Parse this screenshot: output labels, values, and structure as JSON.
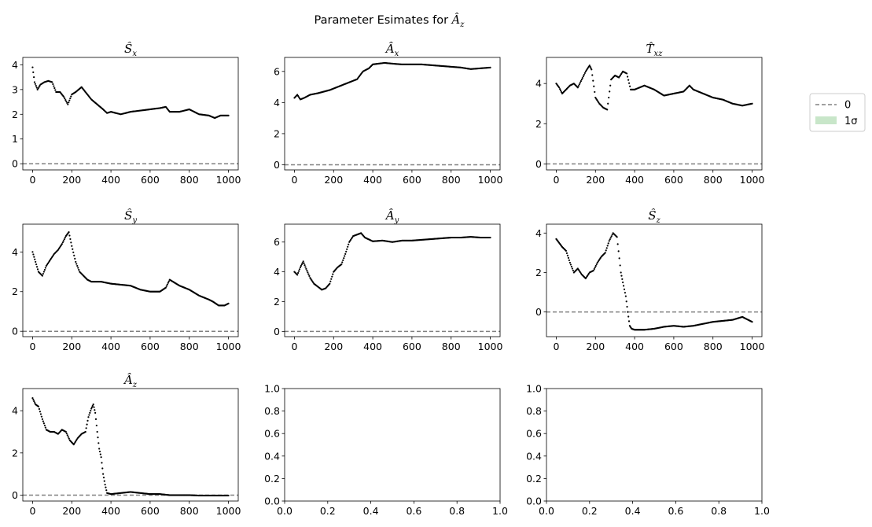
{
  "figure": {
    "suptitle": "Parameter Esimates for Â_z",
    "suptitle_base": "Parameter Esimates for ",
    "suptitle_math": "Â",
    "suptitle_sub": "z"
  },
  "legend": {
    "placement": "right",
    "items": [
      {
        "label": "0",
        "style": "dashed-line",
        "color": "#808080"
      },
      {
        "label": "1σ",
        "style": "patch",
        "color": "#c8e6c9"
      }
    ]
  },
  "chart_data": [
    {
      "type": "scatter",
      "title_symbol": "Ŝ",
      "title_sub": "x",
      "xlim": [
        -50,
        1050
      ],
      "ylim": [
        -0.25,
        4.3
      ],
      "xticks": [
        0,
        200,
        400,
        600,
        800,
        1000
      ],
      "yticks": [
        0,
        1,
        2,
        3,
        4
      ],
      "zero_line": 0,
      "x": [
        0,
        10,
        25,
        40,
        60,
        80,
        100,
        120,
        140,
        160,
        180,
        200,
        220,
        250,
        280,
        300,
        330,
        360,
        380,
        400,
        450,
        500,
        550,
        600,
        650,
        680,
        700,
        750,
        800,
        850,
        900,
        930,
        960,
        1000
      ],
      "y": [
        3.9,
        3.3,
        3.0,
        3.2,
        3.3,
        3.35,
        3.3,
        2.9,
        2.9,
        2.7,
        2.4,
        2.8,
        2.9,
        3.1,
        2.8,
        2.6,
        2.4,
        2.2,
        2.05,
        2.1,
        2.0,
        2.1,
        2.15,
        2.2,
        2.25,
        2.3,
        2.1,
        2.1,
        2.2,
        2.0,
        1.95,
        1.85,
        1.95,
        1.95
      ]
    },
    {
      "type": "scatter",
      "title_symbol": "Â",
      "title_sub": "x",
      "xlim": [
        -50,
        1050
      ],
      "ylim": [
        -0.33,
        6.9
      ],
      "xticks": [
        0,
        200,
        400,
        600,
        800,
        1000
      ],
      "yticks": [
        0,
        2,
        4,
        6
      ],
      "zero_line": 0,
      "x": [
        0,
        15,
        30,
        50,
        80,
        120,
        150,
        180,
        200,
        240,
        280,
        320,
        350,
        380,
        400,
        430,
        460,
        500,
        550,
        600,
        650,
        700,
        750,
        800,
        850,
        900,
        950,
        1000
      ],
      "y": [
        4.3,
        4.5,
        4.2,
        4.3,
        4.5,
        4.6,
        4.7,
        4.8,
        4.9,
        5.1,
        5.3,
        5.5,
        6.0,
        6.2,
        6.45,
        6.5,
        6.55,
        6.5,
        6.45,
        6.45,
        6.45,
        6.4,
        6.35,
        6.3,
        6.25,
        6.15,
        6.2,
        6.25
      ]
    },
    {
      "type": "scatter",
      "title_symbol": "T̂",
      "title_sub": "xz",
      "xlim": [
        -50,
        1050
      ],
      "ylim": [
        -0.3,
        5.3
      ],
      "xticks": [
        0,
        200,
        400,
        600,
        800,
        1000
      ],
      "yticks": [
        0,
        2,
        4
      ],
      "zero_line": 0,
      "x": [
        0,
        15,
        30,
        50,
        70,
        90,
        110,
        130,
        150,
        170,
        180,
        200,
        220,
        240,
        260,
        280,
        300,
        320,
        340,
        360,
        380,
        400,
        450,
        500,
        550,
        600,
        650,
        680,
        700,
        750,
        800,
        850,
        900,
        950,
        1000
      ],
      "y": [
        4.0,
        3.8,
        3.5,
        3.7,
        3.9,
        4.0,
        3.8,
        4.2,
        4.6,
        4.9,
        4.7,
        3.3,
        3.0,
        2.8,
        2.7,
        4.2,
        4.4,
        4.3,
        4.6,
        4.5,
        3.7,
        3.7,
        3.9,
        3.7,
        3.4,
        3.5,
        3.6,
        3.9,
        3.7,
        3.5,
        3.3,
        3.2,
        3.0,
        2.9,
        3.0
      ]
    },
    {
      "type": "scatter",
      "title_symbol": "Ŝ",
      "title_sub": "y",
      "xlim": [
        -50,
        1050
      ],
      "ylim": [
        -0.27,
        5.4
      ],
      "xticks": [
        0,
        200,
        400,
        600,
        800,
        1000
      ],
      "yticks": [
        0,
        2,
        4
      ],
      "zero_line": 0,
      "x": [
        0,
        15,
        30,
        50,
        70,
        90,
        110,
        130,
        150,
        170,
        185,
        200,
        220,
        240,
        260,
        280,
        300,
        350,
        400,
        450,
        500,
        550,
        600,
        650,
        680,
        700,
        750,
        800,
        850,
        900,
        920,
        950,
        980,
        1000
      ],
      "y": [
        4.0,
        3.5,
        3.0,
        2.8,
        3.3,
        3.6,
        3.9,
        4.1,
        4.4,
        4.8,
        5.0,
        4.3,
        3.5,
        3.0,
        2.8,
        2.6,
        2.5,
        2.5,
        2.4,
        2.35,
        2.3,
        2.1,
        2.0,
        2.0,
        2.2,
        2.6,
        2.3,
        2.1,
        1.8,
        1.6,
        1.5,
        1.3,
        1.3,
        1.4
      ]
    },
    {
      "type": "scatter",
      "title_symbol": "Â",
      "title_sub": "y",
      "xlim": [
        -50,
        1050
      ],
      "ylim": [
        -0.35,
        7.2
      ],
      "xticks": [
        0,
        200,
        400,
        600,
        800,
        1000
      ],
      "yticks": [
        0,
        2,
        4,
        6
      ],
      "zero_line": 0,
      "x": [
        0,
        15,
        30,
        45,
        60,
        80,
        100,
        120,
        140,
        160,
        180,
        200,
        220,
        240,
        260,
        280,
        300,
        320,
        340,
        360,
        400,
        450,
        500,
        550,
        600,
        650,
        700,
        750,
        800,
        850,
        900,
        950,
        1000
      ],
      "y": [
        4.0,
        3.8,
        4.3,
        4.7,
        4.2,
        3.6,
        3.2,
        3.0,
        2.8,
        2.9,
        3.2,
        4.0,
        4.3,
        4.5,
        5.2,
        6.0,
        6.4,
        6.5,
        6.6,
        6.3,
        6.05,
        6.1,
        6.0,
        6.1,
        6.1,
        6.15,
        6.2,
        6.25,
        6.3,
        6.3,
        6.35,
        6.3,
        6.3
      ]
    },
    {
      "type": "scatter",
      "title_symbol": "Ŝ",
      "title_sub": "z",
      "xlim": [
        -50,
        1050
      ],
      "ylim": [
        -1.25,
        4.45
      ],
      "xticks": [
        0,
        200,
        400,
        600,
        800,
        1000
      ],
      "yticks": [
        0,
        2,
        4
      ],
      "zero_line": 0,
      "x": [
        0,
        15,
        30,
        50,
        70,
        90,
        110,
        130,
        150,
        170,
        190,
        210,
        230,
        250,
        270,
        290,
        310,
        330,
        340,
        355,
        365,
        375,
        385,
        400,
        450,
        500,
        550,
        600,
        650,
        700,
        750,
        800,
        850,
        900,
        950,
        1000
      ],
      "y": [
        3.7,
        3.5,
        3.3,
        3.1,
        2.5,
        2.0,
        2.2,
        1.9,
        1.7,
        2.0,
        2.1,
        2.5,
        2.8,
        3.0,
        3.6,
        4.0,
        3.8,
        2.0,
        1.5,
        0.8,
        0.0,
        -0.7,
        -0.85,
        -0.9,
        -0.9,
        -0.85,
        -0.75,
        -0.7,
        -0.75,
        -0.7,
        -0.6,
        -0.5,
        -0.45,
        -0.4,
        -0.25,
        -0.5
      ]
    },
    {
      "type": "scatter",
      "title_symbol": "Â",
      "title_sub": "z",
      "xlim": [
        -50,
        1050
      ],
      "ylim": [
        -0.28,
        5.05
      ],
      "xticks": [
        0,
        200,
        400,
        600,
        800,
        1000
      ],
      "yticks": [
        0,
        2,
        4
      ],
      "zero_line": 0,
      "x": [
        0,
        15,
        30,
        50,
        70,
        90,
        110,
        130,
        150,
        170,
        190,
        210,
        230,
        250,
        270,
        285,
        300,
        310,
        320,
        330,
        340,
        350,
        360,
        370,
        380,
        400,
        450,
        500,
        550,
        600,
        650,
        700,
        750,
        800,
        850,
        900,
        950,
        1000
      ],
      "y": [
        4.6,
        4.3,
        4.2,
        3.6,
        3.1,
        3.0,
        3.0,
        2.9,
        3.1,
        3.0,
        2.6,
        2.4,
        2.7,
        2.9,
        3.0,
        3.7,
        4.1,
        4.3,
        3.9,
        3.0,
        2.2,
        1.8,
        1.0,
        0.5,
        0.1,
        0.05,
        0.1,
        0.15,
        0.1,
        0.05,
        0.05,
        0.0,
        0.0,
        0.0,
        -0.02,
        -0.02,
        -0.02,
        -0.02
      ]
    },
    {
      "type": "scatter",
      "empty": true,
      "xlim": [
        0,
        1
      ],
      "ylim": [
        0,
        1
      ],
      "xticks": [
        0,
        0.2,
        0.4,
        0.6,
        0.8,
        1.0
      ],
      "yticks": [
        0,
        0.2,
        0.4,
        0.6,
        0.8,
        1.0
      ],
      "xtick_labels": [
        "0.0",
        "0.2",
        "0.4",
        "0.6",
        "0.8",
        "1.0"
      ],
      "ytick_labels": [
        "0.0",
        "0.2",
        "0.4",
        "0.6",
        "0.8",
        "1.0"
      ]
    },
    {
      "type": "scatter",
      "empty": true,
      "xlim": [
        0,
        1
      ],
      "ylim": [
        0,
        1
      ],
      "xticks": [
        0,
        0.2,
        0.4,
        0.6,
        0.8,
        1.0
      ],
      "yticks": [
        0,
        0.2,
        0.4,
        0.6,
        0.8,
        1.0
      ],
      "xtick_labels": [
        "0.0",
        "0.2",
        "0.4",
        "0.6",
        "0.8",
        "1.0"
      ],
      "ytick_labels": [
        "0.0",
        "0.2",
        "0.4",
        "0.6",
        "0.8",
        "1.0"
      ]
    }
  ]
}
